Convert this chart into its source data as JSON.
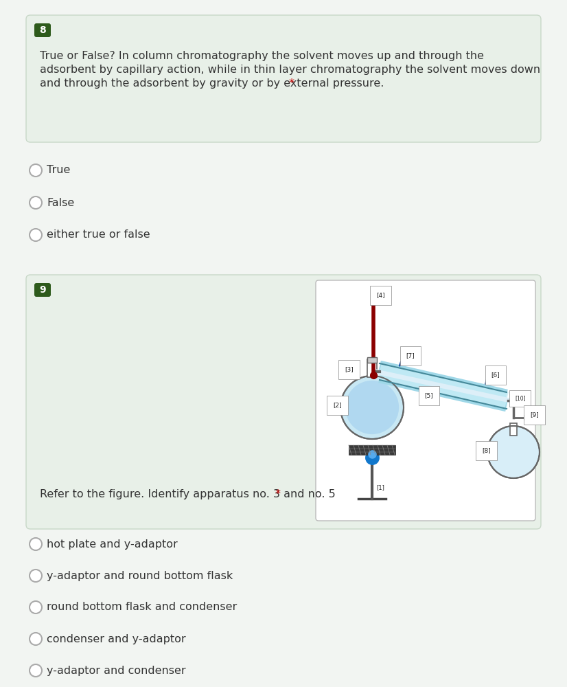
{
  "bg_color": "#f2f5f2",
  "q8_box_color": "#e8f0e8",
  "q8_box_border": "#c8d8c8",
  "q9_box_color": "#e8f0e8",
  "q9_box_border": "#c8d8c8",
  "num_bg": "#2d5a1b",
  "text_color": "#333333",
  "star_color": "#cc0000",
  "circle_edge": "#aaaaaa",
  "font_size": 11.5,
  "q8_num": "8",
  "q9_num": "9",
  "q8_line1": "True or False? In column chromatography the solvent moves up and through the",
  "q8_line2": "adsorbent by capillary action, while in thin layer chromatography the solvent moves down",
  "q8_line3": "and through the adsorbent by gravity or by external pressure.",
  "q8_options": [
    "True",
    "False",
    "either true or false"
  ],
  "q9_question": "Refer to the figure. Identify apparatus no. 3 and no. 5",
  "q9_options": [
    "hot plate and y-adaptor",
    "y-adaptor and round bottom flask",
    "round bottom flask and condenser",
    "condenser and y-adaptor",
    "y-adaptor and condenser"
  ]
}
